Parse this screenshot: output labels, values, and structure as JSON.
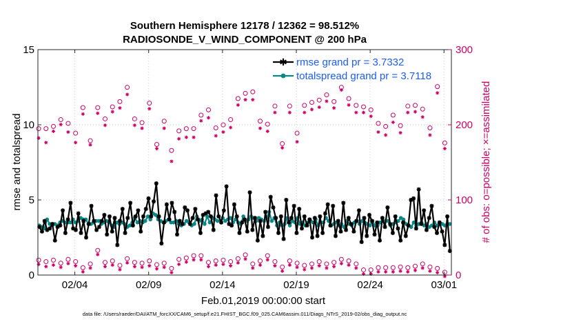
{
  "chart_data": {
    "type": "line",
    "title": [
      "Southern Hemisphere 12178 / 12362 = 98.512%",
      "RADIOSONDE_V_WIND_COMPONENT @ 200 hPa"
    ],
    "xlabel": "Feb.01,2019 00:00:00 start",
    "ylabel": "rmse and totalspread",
    "y2label": "# of obs: o=possible; ×=assimilated",
    "xlim": [
      0,
      28
    ],
    "ylim": [
      0,
      15
    ],
    "y2lim": [
      0,
      300
    ],
    "xticks": [
      {
        "pos": 2.5,
        "label": "02/04"
      },
      {
        "pos": 7.5,
        "label": "02/09"
      },
      {
        "pos": 12.5,
        "label": "02/14"
      },
      {
        "pos": 17.5,
        "label": "02/19"
      },
      {
        "pos": 22.5,
        "label": "02/24"
      },
      {
        "pos": 27.5,
        "label": "03/01"
      }
    ],
    "yticks": [
      0,
      5,
      10,
      15
    ],
    "y2ticks": [
      0,
      100,
      200,
      300
    ],
    "series": [
      {
        "name": "rmse grand pr = 3.7332",
        "color": "#000000",
        "axis": "left",
        "values": [
          3.2,
          2.9,
          3.6,
          3.0,
          3.1,
          3.4,
          2.3,
          3.2,
          3.3,
          4.3,
          2.8,
          3.7,
          4.8,
          3.1,
          3.0,
          4.1,
          2.8,
          3.6,
          2.5,
          3.4,
          4.6,
          3.6,
          3.0,
          3.2,
          3.6,
          4.0,
          2.7,
          3.9,
          2.9,
          3.8,
          2.0,
          3.6,
          4.4,
          2.8,
          3.8,
          4.8,
          3.3,
          3.9,
          4.3,
          2.9,
          3.9,
          4.4,
          5.1,
          3.9,
          4.9,
          6.1,
          3.9,
          2.1,
          3.5,
          4.7,
          3.7,
          4.8,
          4.2,
          2.7,
          3.6,
          3.4,
          4.5,
          4.3,
          3.4,
          3.8,
          4.4,
          3.7,
          2.8,
          4.0,
          4.1,
          4.2,
          3.9,
          3.0,
          5.3,
          3.9,
          3.5,
          4.3,
          5.9,
          3.4,
          3.3,
          4.7,
          3.9,
          2.8,
          3.5,
          3.7,
          2.9,
          5.5,
          3.0,
          3.8,
          2.3,
          3.6,
          2.6,
          4.2,
          3.2,
          5.2,
          4.5,
          3.8,
          2.8,
          3.9,
          2.4,
          5.0,
          3.5,
          3.8,
          4.6,
          2.8,
          4.4,
          3.1,
          3.9,
          3.3,
          3.7,
          2.5,
          3.8,
          2.6,
          3.9,
          2.8,
          4.1,
          4.7,
          3.3,
          4.6,
          2.6,
          3.6,
          2.9,
          4.8,
          3.0,
          3.8,
          3.4,
          2.9,
          3.6,
          4.3,
          2.2,
          3.8,
          2.6,
          4.0,
          3.6,
          2.7,
          3.5,
          2.3,
          3.8,
          3.2,
          4.5,
          3.4,
          2.8,
          3.9,
          3.1,
          2.3,
          3.5,
          2.6,
          3.3,
          5.0,
          5.1,
          3.1,
          5.7,
          3.4,
          4.3,
          3.0,
          3.8,
          4.6,
          3.2,
          2.8,
          3.5,
          2.9,
          2.0,
          3.9,
          1.6
        ]
      },
      {
        "name": "totalspread grand pr = 3.7118",
        "color": "#0a8686",
        "axis": "left",
        "values": [
          3.3,
          3.2,
          3.1,
          3.7,
          3.4,
          3.3,
          3.4,
          3.3,
          3.5,
          3.6,
          3.5,
          3.5,
          3.5,
          3.7,
          3.5,
          3.6,
          3.8,
          3.7,
          3.7,
          3.4,
          3.4,
          3.5,
          3.6,
          3.6,
          3.4,
          3.5,
          3.6,
          3.5,
          3.3,
          3.2,
          3.5,
          3.4,
          3.5,
          3.4,
          3.2,
          3.3,
          3.5,
          3.8,
          3.5,
          3.6,
          3.5,
          3.6,
          3.9,
          3.7,
          4.1,
          4.0,
          3.7,
          3.6,
          3.5,
          3.6,
          3.7,
          3.5,
          3.5,
          3.6,
          3.4,
          3.3,
          3.4,
          3.6,
          3.5,
          3.3,
          3.4,
          3.9,
          3.6,
          3.7,
          3.4,
          3.9,
          3.5,
          3.8,
          3.7,
          3.6,
          3.6,
          3.8,
          3.6,
          3.7,
          3.8,
          3.5,
          3.7,
          3.5,
          3.4,
          3.9,
          3.6,
          3.7,
          3.9,
          3.8,
          3.6,
          3.8,
          3.7,
          3.6,
          3.8,
          4.2,
          3.6,
          3.8,
          3.3,
          3.5,
          3.3,
          3.4,
          3.8,
          3.3,
          3.6,
          3.5,
          3.8,
          3.4,
          3.5,
          3.3,
          3.5,
          3.6,
          3.5,
          3.7,
          3.3,
          3.5,
          3.5,
          3.8,
          3.6,
          3.3,
          3.4,
          3.5,
          3.3,
          3.4,
          3.2,
          3.6,
          3.4,
          3.3,
          3.5,
          3.6,
          3.4,
          3.6,
          3.5,
          3.4,
          3.3,
          3.6,
          3.3,
          3.3,
          3.5,
          3.6,
          3.6,
          3.6,
          3.3,
          3.4,
          3.5,
          3.6,
          3.8,
          3.7,
          3.4,
          3.3,
          3.2,
          3.5,
          3.3,
          3.4,
          3.5,
          3.3,
          3.4,
          3.2,
          3.3,
          3.5,
          3.3,
          3.5,
          3.4,
          3.3,
          3.4,
          3.4
        ]
      }
    ],
    "obs_possible": {
      "name": "possible",
      "marker": "o",
      "axis": "right",
      "x": [
        0.05,
        0.55,
        1.05,
        1.55,
        2.05,
        2.55,
        3.05,
        3.55,
        4.05,
        4.55,
        5.05,
        5.55,
        6.05,
        6.55,
        7.05,
        7.55,
        8.05,
        8.55,
        9.05,
        9.55,
        10.05,
        10.55,
        11.05,
        11.55,
        12.05,
        12.55,
        13.05,
        13.55,
        14.05,
        14.55,
        15.05,
        15.55,
        16.05,
        16.55,
        17.05,
        17.55,
        18.05,
        18.55,
        19.05,
        19.55,
        20.05,
        20.55,
        21.05,
        21.55,
        22.05,
        22.55,
        23.05,
        23.55,
        24.05,
        24.55,
        25.05,
        25.55,
        26.05,
        26.55,
        27.05,
        27.55,
        0.05,
        0.55,
        1.05,
        1.55,
        2.05,
        2.55,
        3.05,
        3.55,
        4.05,
        4.55,
        5.05,
        5.55,
        6.05,
        6.55,
        7.05,
        7.55,
        8.05,
        8.55,
        9.05,
        9.55,
        10.05,
        10.55,
        11.05,
        11.55,
        12.05,
        12.55,
        13.05,
        13.55,
        14.05,
        14.55,
        15.05,
        15.55,
        16.05,
        16.55,
        17.05,
        17.55,
        18.05,
        18.55,
        19.05,
        19.55,
        20.05,
        20.55,
        21.05,
        21.55,
        22.05,
        22.55,
        23.05,
        23.55,
        24.05,
        24.55,
        25.05,
        25.55,
        26.05,
        26.55,
        27.05,
        27.55
      ],
      "y": [
        193,
        193,
        196,
        205,
        200,
        187,
        221,
        177,
        221,
        206,
        222,
        229,
        248,
        206,
        201,
        227,
        172,
        203,
        164,
        190,
        193,
        193,
        211,
        218,
        194,
        198,
        205,
        233,
        240,
        242,
        203,
        199,
        223,
        173,
        223,
        187,
        224,
        228,
        231,
        238,
        229,
        248,
        233,
        224,
        222,
        218,
        200,
        196,
        211,
        197,
        223,
        224,
        219,
        194,
        249,
        174,
        18,
        16,
        18,
        14,
        19,
        16,
        8,
        13,
        31,
        15,
        17,
        11,
        20,
        15,
        14,
        17,
        12,
        14,
        7,
        19,
        21,
        24,
        24,
        15,
        17,
        18,
        16,
        20,
        25,
        13,
        17,
        24,
        16,
        9,
        17,
        14,
        11,
        13,
        16,
        13,
        15,
        19,
        17,
        13,
        5,
        5,
        8,
        8,
        8,
        9,
        8,
        10,
        13,
        9,
        7,
        2
      ]
    },
    "obs_assimilated": {
      "name": "assimilated",
      "marker": "x",
      "axis": "right",
      "x": [
        0.05,
        0.55,
        1.05,
        1.55,
        2.05,
        2.55,
        3.05,
        3.55,
        4.05,
        4.55,
        5.05,
        5.55,
        6.05,
        6.55,
        7.05,
        7.55,
        8.05,
        8.55,
        9.05,
        9.55,
        10.05,
        10.55,
        11.05,
        11.55,
        12.05,
        12.55,
        13.05,
        13.55,
        14.05,
        14.55,
        15.05,
        15.55,
        16.05,
        16.55,
        17.05,
        17.55,
        18.05,
        18.55,
        19.05,
        19.55,
        20.05,
        20.55,
        21.05,
        21.55,
        22.05,
        22.55,
        23.05,
        23.55,
        24.05,
        24.55,
        25.05,
        25.55,
        26.05,
        26.55,
        27.05,
        27.55,
        0.05,
        0.55,
        1.05,
        1.55,
        2.05,
        2.55,
        3.05,
        3.55,
        4.05,
        4.55,
        5.05,
        5.55,
        6.05,
        6.55,
        7.05,
        7.55,
        8.05,
        8.55,
        9.05,
        9.55,
        10.05,
        10.55,
        11.05,
        11.55,
        12.05,
        12.55,
        13.05,
        13.55,
        14.05,
        14.55,
        15.05,
        15.55,
        16.05,
        16.55,
        17.05,
        17.55,
        18.05,
        18.55,
        19.05,
        19.55,
        20.05,
        20.55,
        21.05,
        21.55,
        22.05,
        22.55,
        23.05,
        23.55,
        24.05,
        24.55,
        25.05,
        25.55,
        26.05,
        26.55,
        27.05,
        27.55
      ],
      "y": [
        186,
        180,
        195,
        204,
        194,
        180,
        218,
        177,
        219,
        203,
        221,
        226,
        244,
        203,
        199,
        225,
        172,
        199,
        155,
        185,
        187,
        187,
        209,
        213,
        189,
        194,
        200,
        230,
        237,
        237,
        199,
        195,
        220,
        173,
        220,
        181,
        220,
        224,
        227,
        235,
        226,
        250,
        230,
        220,
        220,
        215,
        194,
        190,
        207,
        193,
        220,
        221,
        214,
        190,
        246,
        172,
        18,
        15,
        17,
        14,
        19,
        16,
        8,
        13,
        31,
        15,
        17,
        11,
        20,
        15,
        14,
        16,
        12,
        14,
        7,
        18,
        21,
        24,
        24,
        15,
        17,
        18,
        16,
        20,
        25,
        13,
        17,
        24,
        16,
        9,
        17,
        14,
        11,
        13,
        16,
        13,
        15,
        19,
        17,
        13,
        5,
        5,
        8,
        8,
        8,
        9,
        8,
        10,
        13,
        9,
        7,
        2
      ]
    },
    "legend_position": "top-right",
    "grid": true,
    "footer": "data file: /Users/raeder/DAI/ATM_forcXX/CAM6_setup/f.e21.FHIST_BGC.f09_025.CAM6assim.011/Diags_NTrS_2019-02/obs_diag_output.nc"
  },
  "colors": {
    "rmse": "#000000",
    "spread": "#0a8686",
    "obs": "#cc0066",
    "legend_text": "#1a5cff"
  }
}
